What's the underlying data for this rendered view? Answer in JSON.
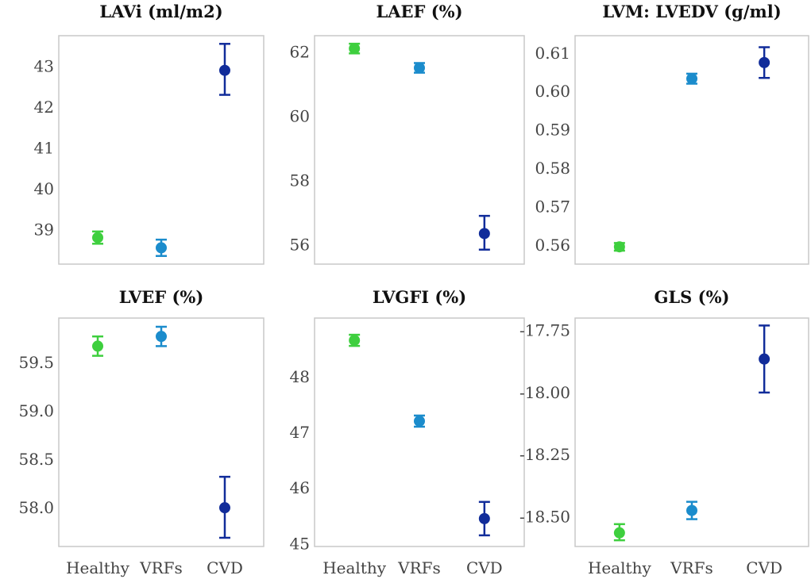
{
  "colors": {
    "Healthy": "#3ecf3e",
    "VRFs": "#1b8ccc",
    "CVD": "#112c9a"
  },
  "chart_data": [
    {
      "type": "scatter",
      "title": "LAVi (ml/m2)",
      "categories": [
        "Healthy",
        "VRFs",
        "CVD"
      ],
      "values": [
        38.8,
        38.55,
        42.9
      ],
      "lower": [
        38.65,
        38.35,
        42.3
      ],
      "upper": [
        38.95,
        38.75,
        43.55
      ],
      "yticks": [
        "39",
        "40",
        "41",
        "42",
        "43"
      ],
      "ylim": [
        38.15,
        43.75
      ],
      "xticks_shown": false
    },
    {
      "type": "scatter",
      "title": "LAEF (%)",
      "categories": [
        "Healthy",
        "VRFs",
        "CVD"
      ],
      "values": [
        62.1,
        61.5,
        56.35
      ],
      "lower": [
        61.95,
        61.35,
        55.85
      ],
      "upper": [
        62.25,
        61.65,
        56.9
      ],
      "yticks": [
        "56",
        "58",
        "60",
        "62"
      ],
      "ylim": [
        55.4,
        62.5
      ],
      "xticks_shown": false
    },
    {
      "type": "scatter",
      "title": "LVM: LVEDV (g/ml)",
      "categories": [
        "Healthy",
        "VRFs",
        "CVD"
      ],
      "values": [
        0.5595,
        0.6033,
        0.6075
      ],
      "lower": [
        0.5585,
        0.602,
        0.6035
      ],
      "upper": [
        0.5605,
        0.6046,
        0.6115
      ],
      "yticks": [
        "0.56",
        "0.57",
        "0.58",
        "0.59",
        "0.60",
        "0.61"
      ],
      "ylim": [
        0.555,
        0.6145
      ],
      "xticks_shown": false
    },
    {
      "type": "scatter",
      "title": "LVEF (%)",
      "categories": [
        "Healthy",
        "VRFs",
        "CVD"
      ],
      "values": [
        59.67,
        59.77,
        58.0
      ],
      "lower": [
        59.57,
        59.67,
        57.69
      ],
      "upper": [
        59.77,
        59.87,
        58.32
      ],
      "yticks": [
        "58.0",
        "58.5",
        "59.0",
        "59.5"
      ],
      "ylim": [
        57.6,
        59.96
      ],
      "xticks_shown": true
    },
    {
      "type": "scatter",
      "title": "LVGFI (%)",
      "categories": [
        "Healthy",
        "VRFs",
        "CVD"
      ],
      "values": [
        48.65,
        47.2,
        45.45
      ],
      "lower": [
        48.55,
        47.1,
        45.15
      ],
      "upper": [
        48.75,
        47.3,
        45.75
      ],
      "yticks": [
        "45",
        "46",
        "47",
        "48"
      ],
      "ylim": [
        44.95,
        49.05
      ],
      "xticks_shown": true
    },
    {
      "type": "scatter",
      "title": "GLS (%)",
      "categories": [
        "Healthy",
        "VRFs",
        "CVD"
      ],
      "values": [
        -18.565,
        -18.475,
        -17.865
      ],
      "lower": [
        -18.595,
        -18.51,
        -18.0
      ],
      "upper": [
        -18.53,
        -18.44,
        -17.73
      ],
      "yticks": [
        "-18.50",
        "-18.25",
        "-18.00",
        "-17.75"
      ],
      "ylim": [
        -18.62,
        -17.7
      ],
      "xticks_shown": true
    }
  ]
}
